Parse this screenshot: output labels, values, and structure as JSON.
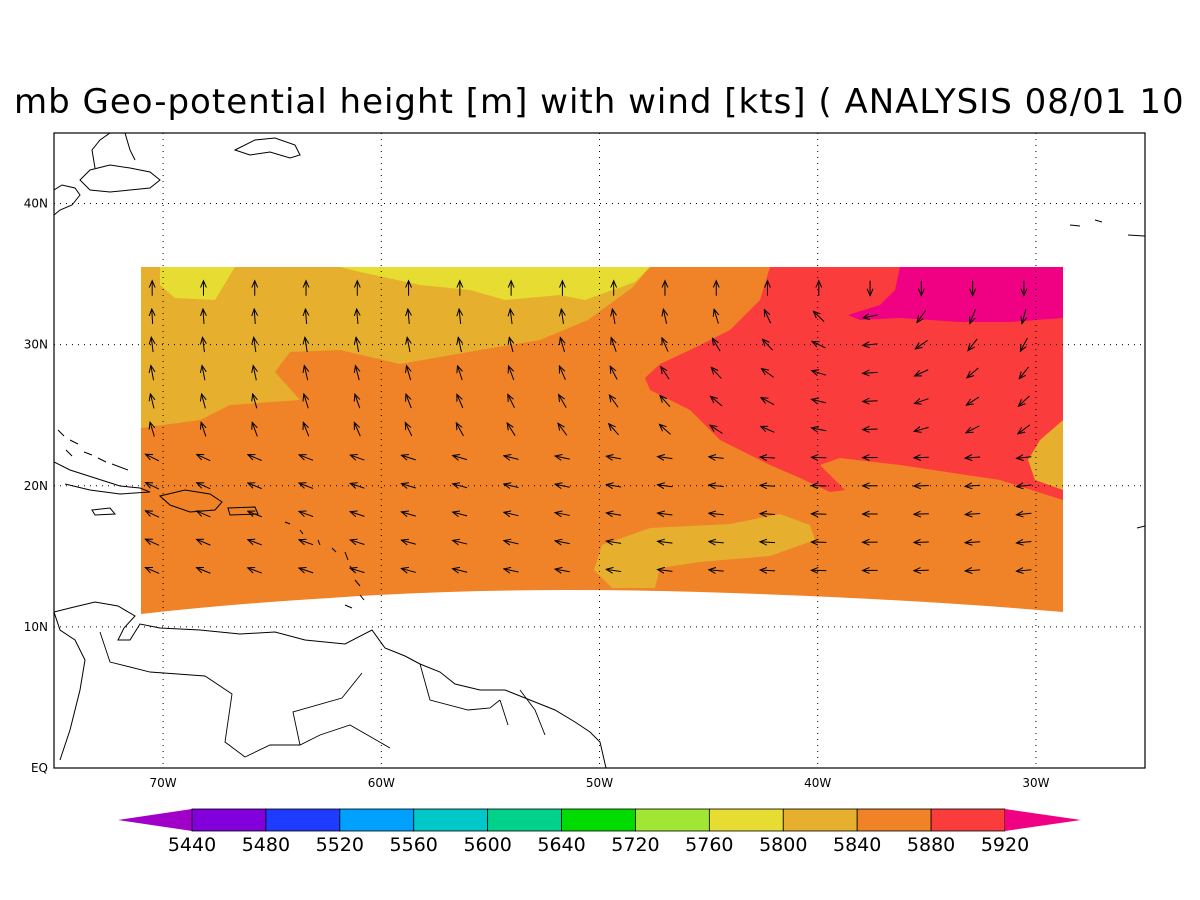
{
  "title": "mb Geo-potential height [m] with wind [kts] ( ANALYSIS 08/01 10",
  "map": {
    "lon_range": [
      -75,
      -25
    ],
    "lat_range": [
      0,
      45
    ],
    "lon_ticks": [
      {
        "value": -70,
        "label": "70W"
      },
      {
        "value": -60,
        "label": "60W"
      },
      {
        "value": -50,
        "label": "50W"
      },
      {
        "value": -40,
        "label": "40W"
      },
      {
        "value": -30,
        "label": "30W"
      }
    ],
    "lat_ticks": [
      {
        "value": 0,
        "label": "EQ"
      },
      {
        "value": 10,
        "label": "10N"
      },
      {
        "value": 20,
        "label": "20N"
      },
      {
        "value": 30,
        "label": "30N"
      },
      {
        "value": 40,
        "label": "40N"
      }
    ],
    "grid": "dotted",
    "data_domain": {
      "lon": [
        -71,
        -29
      ],
      "lat_top": 35.5
    }
  },
  "colorbar": {
    "colors": [
      "#a000c8",
      "#8200dc",
      "#1e3cff",
      "#00a0ff",
      "#00c8c8",
      "#00d28c",
      "#00dc00",
      "#a0e632",
      "#e6dc32",
      "#e6af2d",
      "#f08228",
      "#fa3c3c",
      "#f00082"
    ],
    "labels": [
      "5440",
      "5480",
      "5520",
      "5560",
      "5600",
      "5640",
      "5720",
      "5760",
      "5800",
      "5840",
      "5880",
      "5920"
    ]
  },
  "height_field": {
    "units": "m",
    "levels_shown": [
      5800,
      5840,
      5880,
      5920
    ],
    "colors": {
      "5800": "#e6dc32",
      "5840": "#e6af2d",
      "5880": "#f08228",
      "5920": "#fa3c3c",
      "above": "#f00082"
    }
  }
}
